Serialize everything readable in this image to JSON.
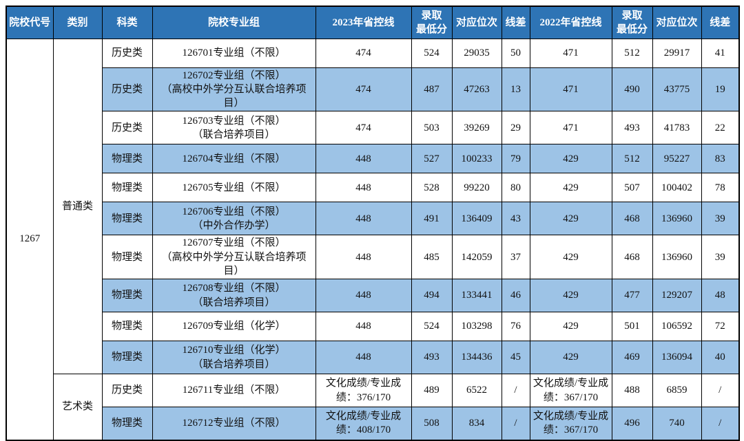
{
  "table": {
    "college_code": "1267",
    "headers": [
      "院校代号",
      "类别",
      "科类",
      "院校专业组",
      "2023年省控线",
      "录取\n最低分",
      "对应位次",
      "线差",
      "2022年省控线",
      "录取\n最低分",
      "对应位次",
      "线差"
    ],
    "categories": [
      {
        "label": "普通类",
        "row_span": 10
      },
      {
        "label": "艺术类",
        "row_span": 2
      }
    ],
    "rows": [
      {
        "subject": "历史类",
        "group": "126701专业组（不限）",
        "line2023": "474",
        "min2023": "524",
        "rank2023": "29035",
        "diff2023": "50",
        "line2022": "471",
        "min2022": "512",
        "rank2022": "29917",
        "diff2022": "41"
      },
      {
        "subject": "历史类",
        "group": "126702专业组（不限）\n（高校中外学分互认联合培养项目）",
        "line2023": "474",
        "min2023": "487",
        "rank2023": "47263",
        "diff2023": "13",
        "line2022": "471",
        "min2022": "490",
        "rank2022": "43775",
        "diff2022": "19"
      },
      {
        "subject": "历史类",
        "group": "126703专业组（不限）\n（联合培养项目）",
        "line2023": "474",
        "min2023": "503",
        "rank2023": "39269",
        "diff2023": "29",
        "line2022": "471",
        "min2022": "493",
        "rank2022": "41783",
        "diff2022": "22"
      },
      {
        "subject": "物理类",
        "group": "126704专业组（不限）",
        "line2023": "448",
        "min2023": "527",
        "rank2023": "100233",
        "diff2023": "79",
        "line2022": "429",
        "min2022": "512",
        "rank2022": "95227",
        "diff2022": "83"
      },
      {
        "subject": "物理类",
        "group": "126705专业组（不限）",
        "line2023": "448",
        "min2023": "528",
        "rank2023": "99220",
        "diff2023": "80",
        "line2022": "429",
        "min2022": "507",
        "rank2022": "100402",
        "diff2022": "78"
      },
      {
        "subject": "物理类",
        "group": "126706专业组（不限）\n（中外合作办学）",
        "line2023": "448",
        "min2023": "491",
        "rank2023": "136409",
        "diff2023": "43",
        "line2022": "429",
        "min2022": "468",
        "rank2022": "136960",
        "diff2022": "39"
      },
      {
        "subject": "物理类",
        "group": "126707专业组（不限）\n（高校中外学分互认联合培养项目）",
        "line2023": "448",
        "min2023": "485",
        "rank2023": "142059",
        "diff2023": "37",
        "line2022": "429",
        "min2022": "468",
        "rank2022": "136960",
        "diff2022": "39"
      },
      {
        "subject": "物理类",
        "group": "126708专业组（不限）\n（联合培养项目）",
        "line2023": "448",
        "min2023": "494",
        "rank2023": "133441",
        "diff2023": "46",
        "line2022": "429",
        "min2022": "477",
        "rank2022": "129207",
        "diff2022": "48"
      },
      {
        "subject": "物理类",
        "group": "126709专业组（化学）",
        "line2023": "448",
        "min2023": "524",
        "rank2023": "103298",
        "diff2023": "76",
        "line2022": "429",
        "min2022": "501",
        "rank2022": "106592",
        "diff2022": "72"
      },
      {
        "subject": "物理类",
        "group": "126710专业组（化学）\n（联合培养项目）",
        "line2023": "448",
        "min2023": "493",
        "rank2023": "134436",
        "diff2023": "45",
        "line2022": "429",
        "min2022": "469",
        "rank2022": "136094",
        "diff2022": "40"
      },
      {
        "subject": "历史类",
        "group": "126711专业组（不限）",
        "line2023": "文化成绩/专业成\n绩：376/170",
        "min2023": "489",
        "rank2023": "6522",
        "diff2023": "/",
        "line2022": "文化成绩/专业成\n绩：367/170",
        "min2022": "488",
        "rank2022": "6859",
        "diff2022": "/"
      },
      {
        "subject": "物理类",
        "group": "126712专业组（不限）",
        "line2023": "文化成绩/专业成\n绩：408/170",
        "min2023": "508",
        "rank2023": "834",
        "diff2023": "/",
        "line2022": "文化成绩/专业成\n绩：367/170",
        "min2022": "496",
        "rank2022": "740",
        "diff2022": "/"
      }
    ],
    "colors": {
      "header_bg": "#2E74B5",
      "header_text": "#FFFFFF",
      "stripe_bg": "#9DC3E6",
      "border": "#000000"
    }
  }
}
